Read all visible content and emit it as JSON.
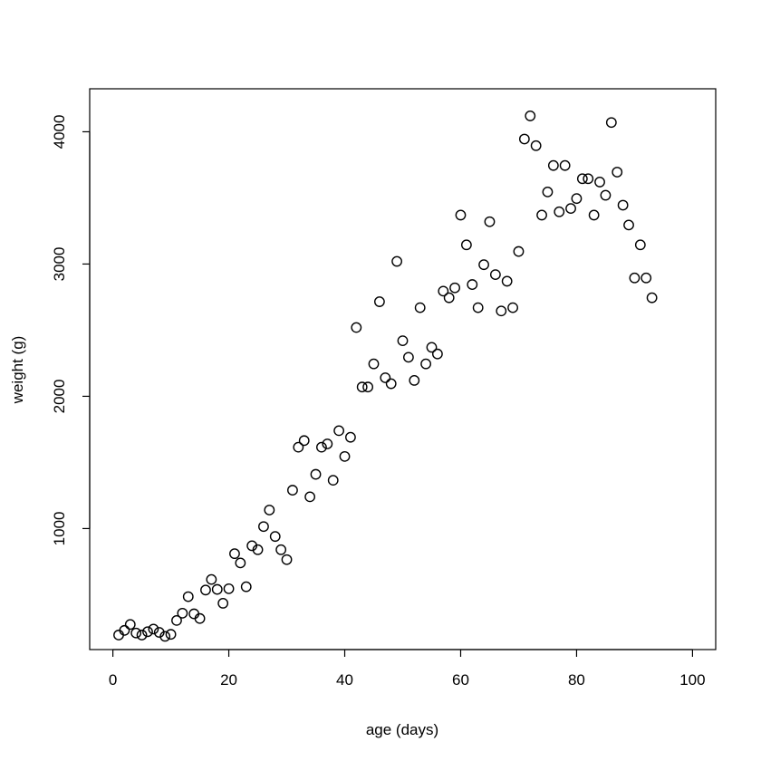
{
  "chart_data": {
    "type": "scatter",
    "title": "",
    "xlabel": "age (days)",
    "ylabel": "weight (g)",
    "xlim": [
      -4,
      104
    ],
    "ylim": [
      85,
      4325
    ],
    "grid": false,
    "x_ticks": [
      0,
      20,
      40,
      60,
      80,
      100
    ],
    "y_ticks": [
      1000,
      2000,
      3000,
      4000
    ],
    "marker": "open-circle",
    "points": [
      [
        1,
        195
      ],
      [
        2,
        230
      ],
      [
        3,
        275
      ],
      [
        4,
        210
      ],
      [
        5,
        195
      ],
      [
        6,
        220
      ],
      [
        7,
        240
      ],
      [
        8,
        215
      ],
      [
        9,
        185
      ],
      [
        10,
        200
      ],
      [
        11,
        305
      ],
      [
        12,
        360
      ],
      [
        13,
        485
      ],
      [
        14,
        355
      ],
      [
        15,
        320
      ],
      [
        16,
        535
      ],
      [
        17,
        615
      ],
      [
        18,
        540
      ],
      [
        19,
        435
      ],
      [
        20,
        545
      ],
      [
        21,
        810
      ],
      [
        22,
        740
      ],
      [
        23,
        560
      ],
      [
        24,
        870
      ],
      [
        25,
        840
      ],
      [
        26,
        1015
      ],
      [
        27,
        1140
      ],
      [
        28,
        940
      ],
      [
        29,
        840
      ],
      [
        30,
        765
      ],
      [
        31,
        1290
      ],
      [
        32,
        1615
      ],
      [
        33,
        1665
      ],
      [
        34,
        1240
      ],
      [
        35,
        1410
      ],
      [
        36,
        1615
      ],
      [
        37,
        1640
      ],
      [
        38,
        1365
      ],
      [
        39,
        1740
      ],
      [
        40,
        1545
      ],
      [
        41,
        1690
      ],
      [
        42,
        2520
      ],
      [
        43,
        2070
      ],
      [
        44,
        2070
      ],
      [
        45,
        2245
      ],
      [
        46,
        2715
      ],
      [
        47,
        2140
      ],
      [
        48,
        2095
      ],
      [
        49,
        3020
      ],
      [
        50,
        2420
      ],
      [
        51,
        2295
      ],
      [
        52,
        2120
      ],
      [
        53,
        2670
      ],
      [
        54,
        2245
      ],
      [
        55,
        2370
      ],
      [
        56,
        2320
      ],
      [
        57,
        2795
      ],
      [
        58,
        2745
      ],
      [
        59,
        2820
      ],
      [
        60,
        3370
      ],
      [
        61,
        3145
      ],
      [
        62,
        2845
      ],
      [
        63,
        2670
      ],
      [
        64,
        2995
      ],
      [
        65,
        3320
      ],
      [
        66,
        2920
      ],
      [
        67,
        2645
      ],
      [
        68,
        2870
      ],
      [
        69,
        2670
      ],
      [
        70,
        3095
      ],
      [
        71,
        3945
      ],
      [
        72,
        4120
      ],
      [
        73,
        3895
      ],
      [
        74,
        3370
      ],
      [
        75,
        3545
      ],
      [
        76,
        3745
      ],
      [
        77,
        3395
      ],
      [
        78,
        3745
      ],
      [
        79,
        3420
      ],
      [
        80,
        3495
      ],
      [
        81,
        3645
      ],
      [
        82,
        3645
      ],
      [
        83,
        3370
      ],
      [
        84,
        3620
      ],
      [
        85,
        3520
      ],
      [
        86,
        4070
      ],
      [
        87,
        3695
      ],
      [
        88,
        3445
      ],
      [
        89,
        3295
      ],
      [
        90,
        2895
      ],
      [
        91,
        3145
      ],
      [
        92,
        2895
      ],
      [
        93,
        2745
      ]
    ]
  }
}
